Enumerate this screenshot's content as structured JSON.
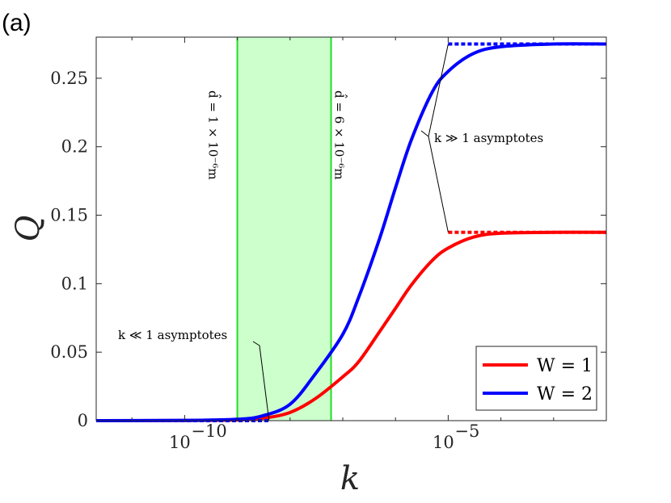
{
  "panel_label": "(a)",
  "chart_data": {
    "type": "line",
    "xlabel": "k",
    "ylabel": "Q",
    "x_scale": "log",
    "xlim": [
      2.1e-12,
      0.01
    ],
    "ylim": [
      0,
      0.28
    ],
    "x_ticks": [
      {
        "value": 1e-10,
        "base": "10",
        "exp": "−10"
      },
      {
        "value": 1e-05,
        "base": "10",
        "exp": "−5"
      }
    ],
    "y_ticks": [
      {
        "value": 0,
        "label": "0"
      },
      {
        "value": 0.05,
        "label": "0.05"
      },
      {
        "value": 0.1,
        "label": "0.1"
      },
      {
        "value": 0.15,
        "label": "0.15"
      },
      {
        "value": 0.2,
        "label": "0.2"
      },
      {
        "value": 0.25,
        "label": "0.25"
      }
    ],
    "series": [
      {
        "name": "W = 1",
        "color": "#ff0000",
        "x": [
          1e-12,
          1e-10,
          1e-09,
          3e-09,
          1e-08,
          3e-08,
          1e-07,
          2e-07,
          5e-07,
          1e-06,
          2e-06,
          5e-06,
          1e-05,
          3e-05,
          0.0001,
          0.001,
          0.01
        ],
        "y": [
          0,
          0.0001,
          0.0005,
          0.0017,
          0.006,
          0.016,
          0.032,
          0.043,
          0.065,
          0.082,
          0.099,
          0.117,
          0.126,
          0.134,
          0.1368,
          0.1375,
          0.1375
        ]
      },
      {
        "name": "W = 2",
        "color": "#0000ff",
        "x": [
          1e-12,
          1e-10,
          1e-09,
          3e-09,
          1e-08,
          3e-08,
          1e-07,
          2e-07,
          5e-07,
          1e-06,
          2e-06,
          5e-06,
          1e-05,
          3e-05,
          0.0001,
          0.001,
          0.01
        ],
        "y": [
          0,
          0.0002,
          0.001,
          0.0035,
          0.012,
          0.034,
          0.063,
          0.09,
          0.133,
          0.17,
          0.205,
          0.24,
          0.255,
          0.268,
          0.273,
          0.275,
          0.275
        ]
      }
    ],
    "asymptotes": [
      {
        "kind": "large_k",
        "y": 0.1375,
        "x_from": 1e-05,
        "x_to": 0.01,
        "color": "#ff0000"
      },
      {
        "kind": "large_k",
        "y": 0.275,
        "x_from": 1e-05,
        "x_to": 0.01,
        "color": "#0000ff"
      },
      {
        "kind": "small_k",
        "y": 0,
        "x_from": 1e-12,
        "x_to": 4e-09,
        "color": "#0000ff"
      }
    ],
    "band": {
      "x_from": 1e-09,
      "x_to": 6e-08,
      "fill": "#ccffcc",
      "edge": "#22dd22"
    },
    "band_labels": [
      {
        "x": 1e-09,
        "text": "d̂ = 1 × 10⁻⁶m"
      },
      {
        "x": 6e-08,
        "text": "d̂ = 6 × 10⁻⁶m"
      }
    ],
    "annotations": [
      {
        "text": "k ≫ 1 asymptotes"
      },
      {
        "text": "k ≪ 1 asymptotes"
      }
    ],
    "legend": {
      "position": "bottom-right"
    },
    "grid": false
  }
}
